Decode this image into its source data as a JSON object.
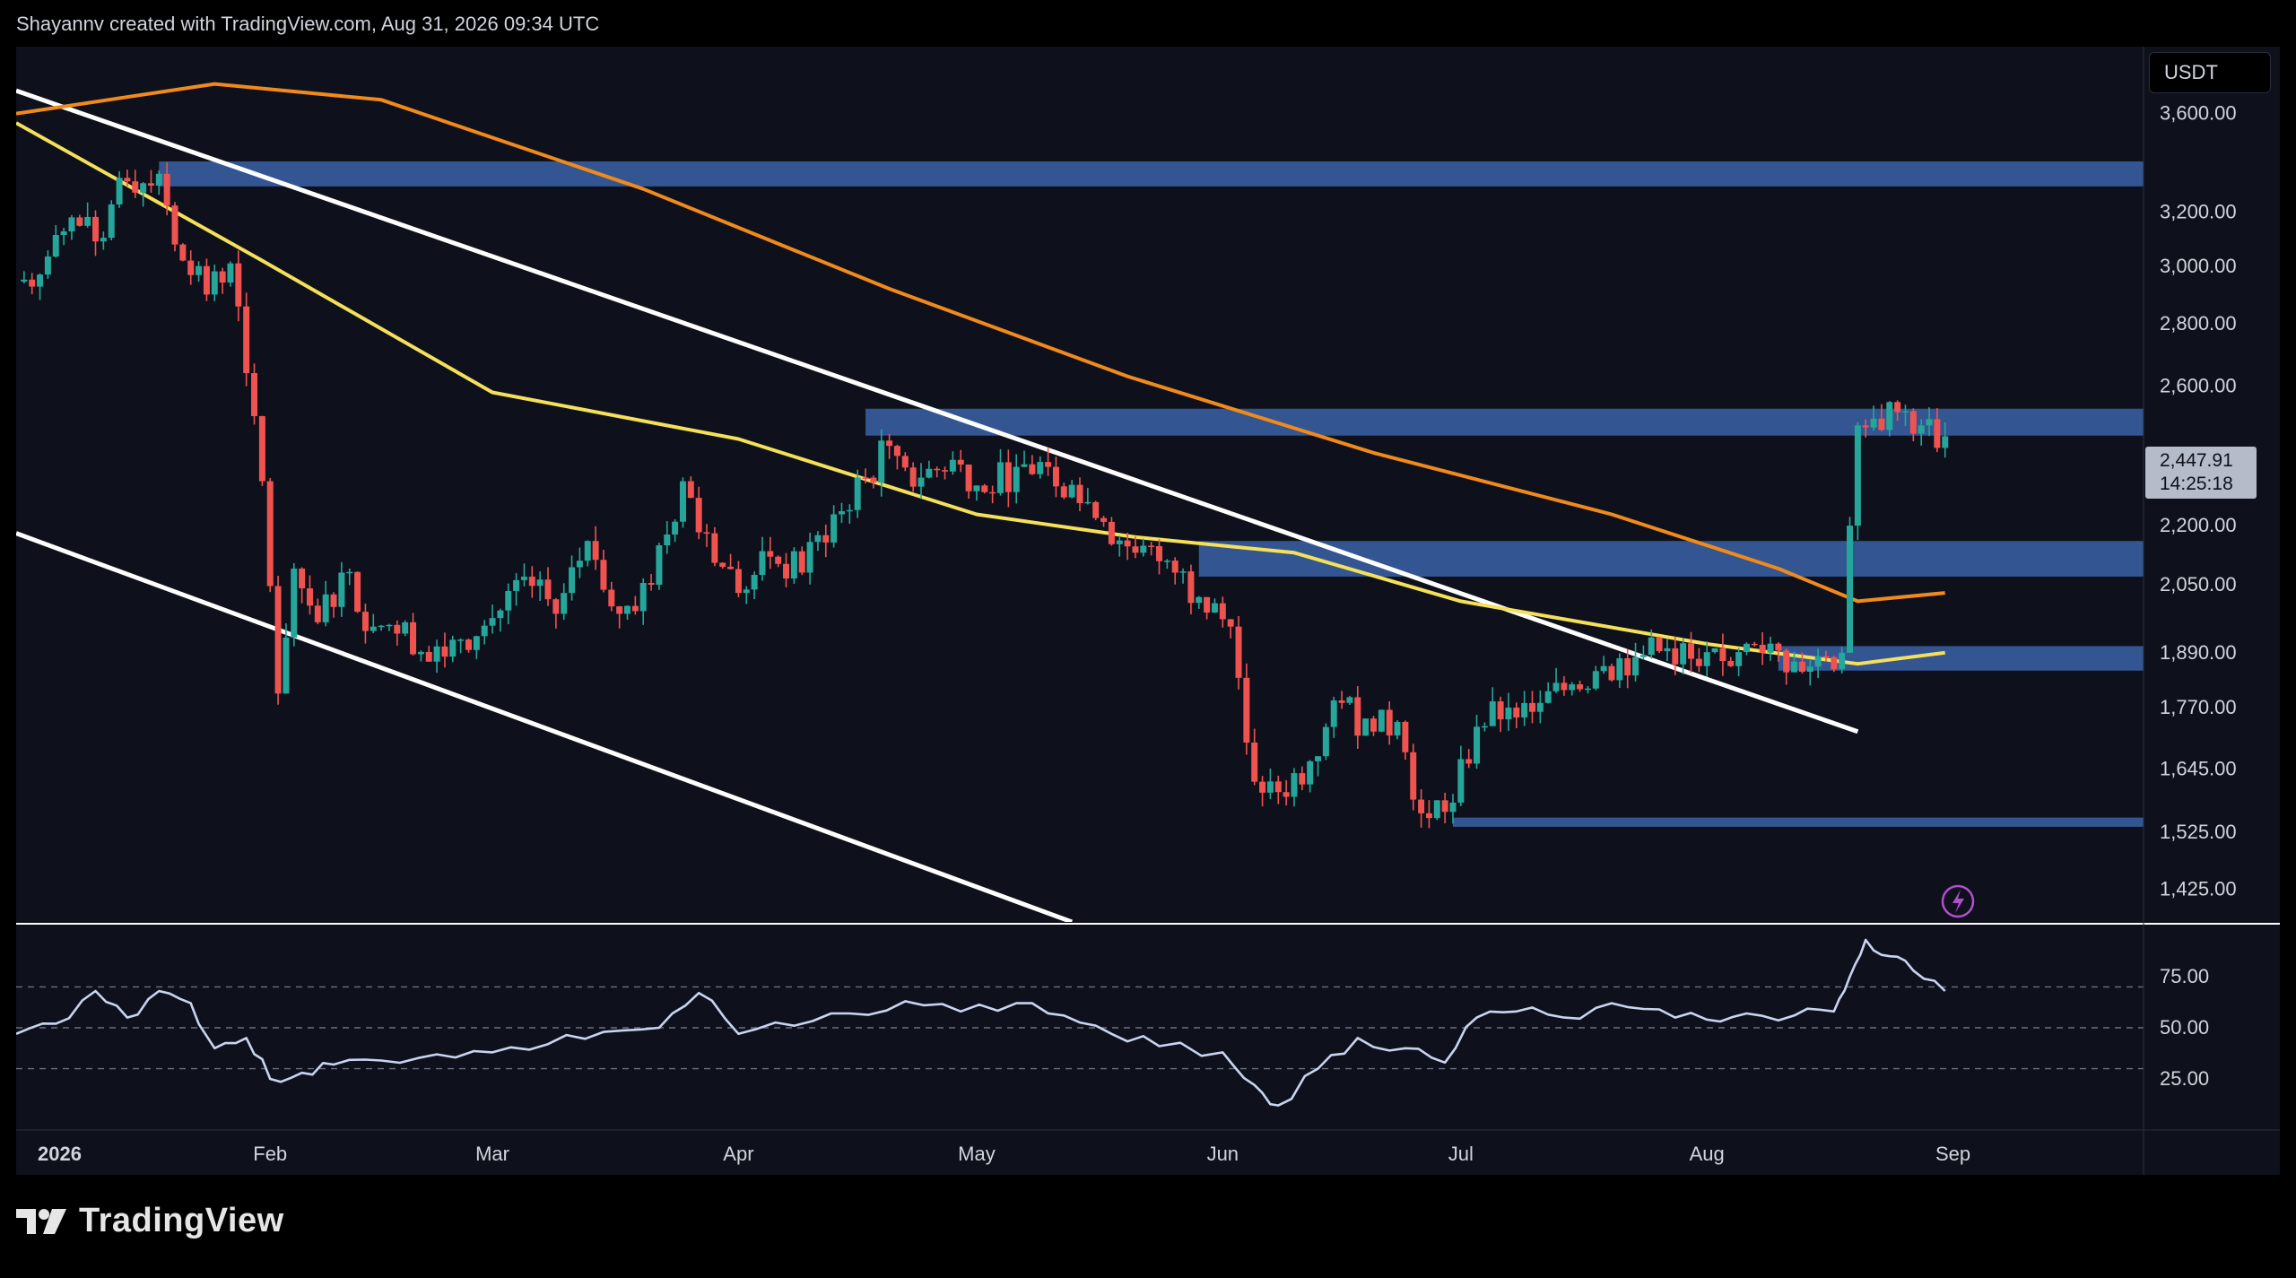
{
  "header": {
    "attribution": "Shayannv created with TradingView.com, Aug 31, 2026 09:34 UTC"
  },
  "currency": "USDT",
  "brand": {
    "name": "TradingView"
  },
  "colors": {
    "background": "#0e111b",
    "up": "#26a69a",
    "down": "#ef5350",
    "ma_fast": "#f5e05a",
    "ma_slow": "#f08a1c",
    "zone": "#3d6ab3",
    "channel": "#ffffff",
    "rsi_line": "#c9d4f0",
    "price_label_bg": "#b6bbc9"
  },
  "chart_data": [
    {
      "type": "candlestick",
      "title": "",
      "ylabel": "",
      "y_scale": "log",
      "ylim": [
        1370,
        3900
      ],
      "y_ticks": [
        "3,600.00",
        "3,200.00",
        "3,000.00",
        "2,800.00",
        "2,600.00",
        "2,200.00",
        "2,050.00",
        "1,890.00",
        "1,770.00",
        "1,645.00",
        "1,525.00",
        "1,425.00"
      ],
      "y_tick_values": [
        3600,
        3200,
        3000,
        2800,
        2600,
        2200,
        2050,
        1890,
        1770,
        1645,
        1525,
        1425
      ],
      "x_ticks": [
        "2026",
        "Feb",
        "Mar",
        "Apr",
        "May",
        "Jun",
        "Jul",
        "Aug",
        "Sep"
      ],
      "x_tick_dates": [
        "2026-01-01",
        "2026-02-01",
        "2026-03-01",
        "2026-04-01",
        "2026-05-01",
        "2026-06-01",
        "2026-07-01",
        "2026-08-01",
        "2026-09-01"
      ],
      "x_range": [
        "2025-12-31",
        "2026-09-25"
      ],
      "last_price": {
        "value": "2,447.91",
        "countdown": "14:25:18",
        "price": 2447.91
      },
      "close_series": [
        [
          "2025-12-31",
          2945
        ],
        [
          "2026-01-03",
          2970
        ],
        [
          "2026-01-07",
          3180
        ],
        [
          "2026-01-10",
          3090
        ],
        [
          "2026-01-14",
          3320
        ],
        [
          "2026-01-18",
          3350
        ],
        [
          "2026-01-21",
          3020
        ],
        [
          "2026-01-24",
          2900
        ],
        [
          "2026-01-27",
          3010
        ],
        [
          "2026-01-29",
          2640
        ],
        [
          "2026-01-31",
          2320
        ],
        [
          "2026-02-02",
          1800
        ],
        [
          "2026-02-04",
          2090
        ],
        [
          "2026-02-07",
          1960
        ],
        [
          "2026-02-10",
          2080
        ],
        [
          "2026-02-14",
          1950
        ],
        [
          "2026-02-18",
          1960
        ],
        [
          "2026-02-21",
          1870
        ],
        [
          "2026-02-25",
          1920
        ],
        [
          "2026-03-01",
          1970
        ],
        [
          "2026-03-05",
          2070
        ],
        [
          "2026-03-09",
          1980
        ],
        [
          "2026-03-13",
          2160
        ],
        [
          "2026-03-17",
          1980
        ],
        [
          "2026-03-21",
          2050
        ],
        [
          "2026-03-25",
          2320
        ],
        [
          "2026-03-28",
          2180
        ],
        [
          "2026-04-01",
          2030
        ],
        [
          "2026-04-05",
          2120
        ],
        [
          "2026-04-09",
          2080
        ],
        [
          "2026-04-13",
          2230
        ],
        [
          "2026-04-17",
          2330
        ],
        [
          "2026-04-20",
          2420
        ],
        [
          "2026-04-24",
          2330
        ],
        [
          "2026-04-28",
          2380
        ],
        [
          "2026-05-02",
          2290
        ],
        [
          "2026-05-06",
          2360
        ],
        [
          "2026-05-10",
          2360
        ],
        [
          "2026-05-13",
          2310
        ],
        [
          "2026-05-17",
          2210
        ],
        [
          "2026-05-21",
          2130
        ],
        [
          "2026-05-25",
          2110
        ],
        [
          "2026-05-29",
          2020
        ],
        [
          "2026-06-02",
          1950
        ],
        [
          "2026-06-05",
          1620
        ],
        [
          "2026-06-08",
          1600
        ],
        [
          "2026-06-12",
          1660
        ],
        [
          "2026-06-16",
          1780
        ],
        [
          "2026-06-20",
          1720
        ],
        [
          "2026-06-23",
          1740
        ],
        [
          "2026-06-26",
          1560
        ],
        [
          "2026-06-30",
          1580
        ],
        [
          "2026-07-03",
          1730
        ],
        [
          "2026-07-07",
          1770
        ],
        [
          "2026-07-11",
          1780
        ],
        [
          "2026-07-15",
          1820
        ],
        [
          "2026-07-19",
          1860
        ],
        [
          "2026-07-23",
          1880
        ],
        [
          "2026-07-27",
          1900
        ],
        [
          "2026-07-31",
          1860
        ],
        [
          "2026-08-04",
          1860
        ],
        [
          "2026-08-08",
          1890
        ],
        [
          "2026-08-12",
          1870
        ],
        [
          "2026-08-16",
          1880
        ],
        [
          "2026-08-18",
          1890
        ],
        [
          "2026-08-19",
          2200
        ],
        [
          "2026-08-20",
          2480
        ],
        [
          "2026-08-22",
          2500
        ],
        [
          "2026-08-25",
          2520
        ],
        [
          "2026-08-28",
          2480
        ],
        [
          "2026-08-31",
          2448
        ]
      ],
      "moving_average_fast": [
        [
          "2025-12-31",
          3560
        ],
        [
          "2026-01-31",
          3020
        ],
        [
          "2026-03-01",
          2580
        ],
        [
          "2026-04-01",
          2440
        ],
        [
          "2026-05-01",
          2230
        ],
        [
          "2026-05-21",
          2170
        ],
        [
          "2026-06-10",
          2130
        ],
        [
          "2026-07-01",
          2010
        ],
        [
          "2026-08-01",
          1910
        ],
        [
          "2026-08-20",
          1865
        ],
        [
          "2026-08-31",
          1890
        ]
      ],
      "moving_average_slow": [
        [
          "2025-12-31",
          3600
        ],
        [
          "2026-01-25",
          3730
        ],
        [
          "2026-02-15",
          3660
        ],
        [
          "2026-03-20",
          3290
        ],
        [
          "2026-04-20",
          2920
        ],
        [
          "2026-05-20",
          2630
        ],
        [
          "2026-06-20",
          2400
        ],
        [
          "2026-07-20",
          2230
        ],
        [
          "2026-08-10",
          2090
        ],
        [
          "2026-08-20",
          2010
        ],
        [
          "2026-08-31",
          2030
        ]
      ],
      "zones": [
        {
          "from": "2026-01-18",
          "to": "2026-09-25",
          "low": 3300,
          "high": 3400
        },
        {
          "from": "2026-04-17",
          "to": "2026-09-25",
          "low": 2450,
          "high": 2530
        },
        {
          "from": "2026-05-29",
          "to": "2026-09-25",
          "low": 2070,
          "high": 2160
        },
        {
          "from": "2026-08-10",
          "to": "2026-09-25",
          "low": 1850,
          "high": 1905
        },
        {
          "from": "2026-06-30",
          "to": "2026-09-25",
          "low": 1535,
          "high": 1552
        }
      ],
      "channel_lines": [
        {
          "from": [
            "2025-12-31",
            3700
          ],
          "to": [
            "2026-08-20",
            1720
          ]
        },
        {
          "from": [
            "2025-12-31",
            2180
          ],
          "to": [
            "2026-05-13",
            1370
          ]
        }
      ]
    },
    {
      "type": "line",
      "title": "",
      "ylim": [
        0,
        100
      ],
      "y_ticks": [
        "75.00",
        "50.00",
        "25.00"
      ],
      "y_tick_values": [
        75,
        50,
        25
      ],
      "reference_lines": [
        70,
        50,
        30
      ],
      "series": [
        {
          "name": "",
          "points": [
            [
              "2025-12-31",
              47
            ],
            [
              "2026-01-05",
              52
            ],
            [
              "2026-01-10",
              68
            ],
            [
              "2026-01-14",
              55
            ],
            [
              "2026-01-18",
              68
            ],
            [
              "2026-01-22",
              62
            ],
            [
              "2026-01-25",
              40
            ],
            [
              "2026-01-29",
              45
            ],
            [
              "2026-02-01",
              25
            ],
            [
              "2026-02-05",
              28
            ],
            [
              "2026-02-09",
              32
            ],
            [
              "2026-02-15",
              34
            ],
            [
              "2026-02-22",
              37
            ],
            [
              "2026-03-01",
              38
            ],
            [
              "2026-03-08",
              42
            ],
            [
              "2026-03-15",
              48
            ],
            [
              "2026-03-22",
              50
            ],
            [
              "2026-03-27",
              67
            ],
            [
              "2026-04-01",
              47
            ],
            [
              "2026-04-08",
              51
            ],
            [
              "2026-04-15",
              57
            ],
            [
              "2026-04-22",
              63
            ],
            [
              "2026-04-29",
              58
            ],
            [
              "2026-05-06",
              62
            ],
            [
              "2026-05-12",
              56
            ],
            [
              "2026-05-18",
              47
            ],
            [
              "2026-05-24",
              41
            ],
            [
              "2026-06-01",
              38
            ],
            [
              "2026-06-05",
              22
            ],
            [
              "2026-06-08",
              12
            ],
            [
              "2026-06-13",
              30
            ],
            [
              "2026-06-18",
              45
            ],
            [
              "2026-06-24",
              40
            ],
            [
              "2026-06-29",
              33
            ],
            [
              "2026-07-03",
              55
            ],
            [
              "2026-07-08",
              58
            ],
            [
              "2026-07-14",
              55
            ],
            [
              "2026-07-20",
              62
            ],
            [
              "2026-07-26",
              59
            ],
            [
              "2026-08-01",
              54
            ],
            [
              "2026-08-06",
              57
            ],
            [
              "2026-08-12",
              56
            ],
            [
              "2026-08-17",
              58
            ],
            [
              "2026-08-19",
              75
            ],
            [
              "2026-08-21",
              93
            ],
            [
              "2026-08-24",
              85
            ],
            [
              "2026-08-27",
              78
            ],
            [
              "2026-08-31",
              68
            ]
          ]
        }
      ]
    }
  ]
}
